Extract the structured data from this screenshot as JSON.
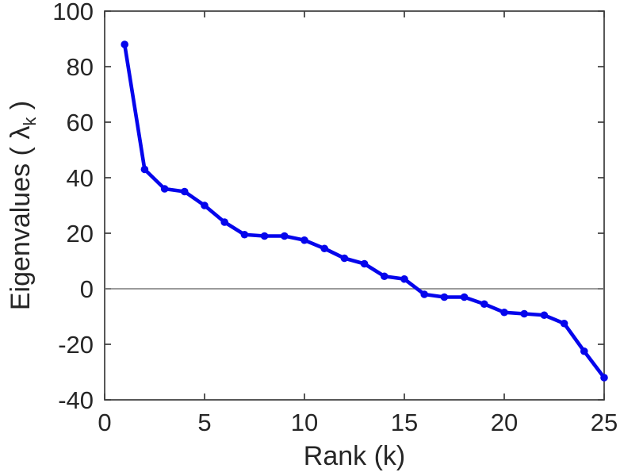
{
  "figure": {
    "background": "#ffffff",
    "axis_color": "#3b3b3b",
    "tick_label_color": "#262626",
    "zero_line_color": "#7a7a7a"
  },
  "ylabel_parts": {
    "prefix": "Eigenvalues ( ",
    "symbol": "λ",
    "subscript": "k",
    "suffix": " )"
  },
  "chart_data": {
    "type": "line",
    "title": "",
    "xlabel": "Rank (k)",
    "ylabel": "Eigenvalues ( λ_k )",
    "xlim": [
      0,
      25
    ],
    "ylim": [
      -40,
      100
    ],
    "xticks": [
      0,
      5,
      10,
      15,
      20,
      25
    ],
    "yticks": [
      -40,
      -20,
      0,
      20,
      40,
      60,
      80,
      100
    ],
    "grid": false,
    "legend": null,
    "zero_line": true,
    "box": true,
    "series": [
      {
        "name": "eigenvalues",
        "color": "#0505EC",
        "marker": "filled-circle",
        "line_width": 4.6,
        "marker_radius": 4.8,
        "x": [
          1,
          2,
          3,
          4,
          5,
          6,
          7,
          8,
          9,
          10,
          11,
          12,
          13,
          14,
          15,
          16,
          17,
          18,
          19,
          20,
          21,
          22,
          23,
          24,
          25
        ],
        "y": [
          88,
          43,
          36,
          35,
          30,
          24,
          19.5,
          19,
          19,
          17.5,
          14.5,
          11,
          9,
          4.5,
          3.5,
          -2,
          -3,
          -3,
          -5.5,
          -8.5,
          -9,
          -9.5,
          -12.5,
          -22.5,
          -32
        ]
      }
    ]
  }
}
